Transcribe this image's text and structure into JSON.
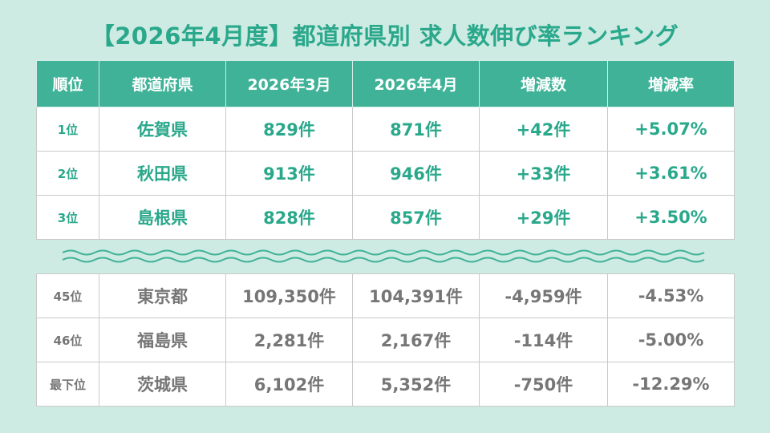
{
  "title": "【2026年4月度】都道府県別 求人数伸び率ランキング",
  "header": [
    "順位",
    "都道府県",
    "2026年3月",
    "2026年4月",
    "増減数",
    "増減率"
  ],
  "top_rows": [
    {
      "rank": "1位",
      "pref": "佐賀県",
      "mar": "829件",
      "apr": "871件",
      "diff": "+42件",
      "rate": "+5.07%"
    },
    {
      "rank": "2位",
      "pref": "秋田県",
      "mar": "913件",
      "apr": "946件",
      "diff": "+33件",
      "rate": "+3.61%"
    },
    {
      "rank": "3位",
      "pref": "島根県",
      "mar": "828件",
      "apr": "857件",
      "diff": "+29件",
      "rate": "+3.50%"
    }
  ],
  "bottom_rows": [
    {
      "rank": "45位",
      "pref": "東京都",
      "mar": "109,350件",
      "apr": "104,391件",
      "diff": "-4,959件",
      "rate": "-4.53%"
    },
    {
      "rank": "46位",
      "pref": "福島県",
      "mar": "2,281件",
      "apr": "2,167件",
      "diff": "-114件",
      "rate": "-5.00%"
    },
    {
      "rank": "最下位",
      "pref": "茨城県",
      "mar": "6,102件",
      "apr": "5,352件",
      "diff": "-750件",
      "rate": "-12.29%"
    }
  ],
  "colors": {
    "background": "#cdeae3",
    "accent": "#3fb297",
    "accent_text": "#2aa88b",
    "muted_text": "#767676"
  },
  "icons": [
    "wave-divider"
  ]
}
